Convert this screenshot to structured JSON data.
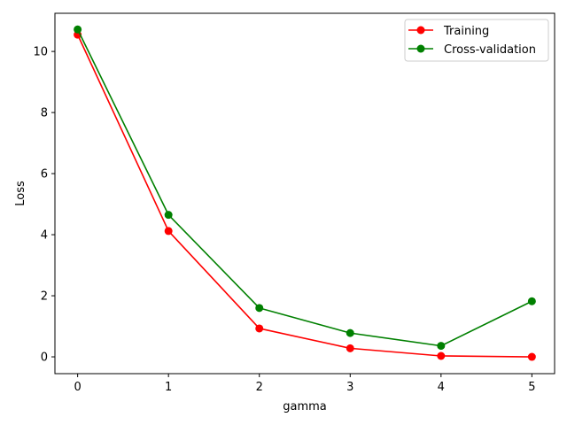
{
  "chart_data": {
    "type": "line",
    "title": "",
    "xlabel": "gamma",
    "ylabel": "Loss",
    "x": [
      0,
      1,
      2,
      3,
      4,
      5
    ],
    "xlim": [
      -0.25,
      5.25
    ],
    "ylim": [
      -0.55,
      11.25
    ],
    "xticks": [
      0,
      1,
      2,
      3,
      4,
      5
    ],
    "yticks": [
      0,
      2,
      4,
      6,
      8,
      10
    ],
    "grid": false,
    "legend_position": "top-right",
    "series": [
      {
        "name": "Training",
        "color": "#ff0000",
        "marker": "circle",
        "values": [
          10.55,
          4.12,
          0.93,
          0.28,
          0.03,
          0.0
        ]
      },
      {
        "name": "Cross-validation",
        "color": "#008000",
        "marker": "circle",
        "values": [
          10.72,
          4.65,
          1.6,
          0.78,
          0.36,
          1.82
        ]
      }
    ]
  }
}
